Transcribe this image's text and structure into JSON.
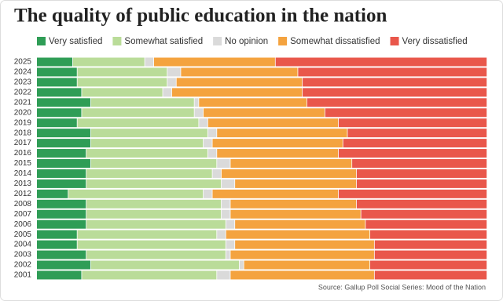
{
  "chart_data": {
    "type": "stacked-bar-horizontal",
    "title": "The quality of public education in the nation",
    "source": "Source: Gallup Poll Social Series: Mood of the Nation",
    "categories": [
      "2025",
      "2024",
      "2023",
      "2022",
      "2021",
      "2020",
      "2019",
      "2018",
      "2017",
      "2016",
      "2015",
      "2014",
      "2013",
      "2012",
      "2008",
      "2007",
      "2006",
      "2005",
      "2004",
      "2003",
      "2002",
      "2001"
    ],
    "xlim": [
      0,
      100
    ],
    "series": [
      {
        "name": "Very satisfied",
        "color": "#2f9d56",
        "values": [
          8,
          9,
          9,
          10,
          12,
          10,
          9,
          12,
          12,
          11,
          12,
          11,
          11,
          7,
          11,
          11,
          11,
          9,
          9,
          11,
          12,
          10
        ]
      },
      {
        "name": "Somewhat satisfied",
        "color": "#badc99",
        "values": [
          16,
          20,
          20,
          18,
          23,
          25,
          27,
          26,
          25,
          27,
          28,
          28,
          30,
          30,
          30,
          30,
          31,
          31,
          33,
          31,
          33,
          30
        ]
      },
      {
        "name": "No opinion",
        "color": "#dadada",
        "values": [
          2,
          3,
          2,
          2,
          1,
          2,
          2,
          2,
          2,
          2,
          3,
          2,
          3,
          2,
          2,
          2,
          2,
          2,
          2,
          1,
          1,
          3
        ]
      },
      {
        "name": "Somewhat dissatisfied",
        "color": "#f4a33f",
        "values": [
          27,
          26,
          28,
          29,
          24,
          27,
          29,
          29,
          29,
          27,
          27,
          30,
          27,
          28,
          28,
          29,
          29,
          32,
          31,
          32,
          28,
          32
        ]
      },
      {
        "name": "Very dissatisfied",
        "color": "#e9574b",
        "values": [
          47,
          42,
          41,
          41,
          40,
          36,
          33,
          31,
          32,
          33,
          30,
          29,
          29,
          33,
          29,
          28,
          27,
          26,
          25,
          25,
          26,
          25
        ]
      }
    ]
  }
}
